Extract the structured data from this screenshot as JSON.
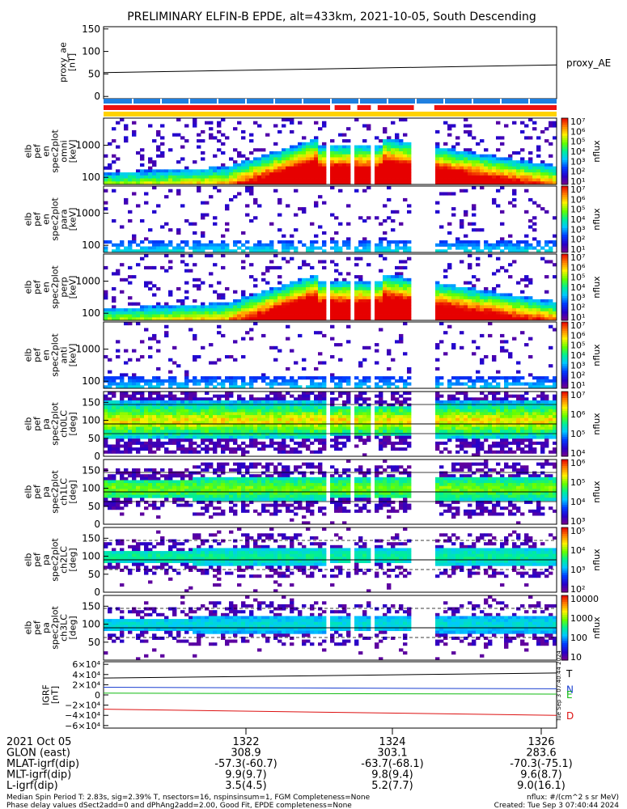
{
  "title": "PRELIMINARY ELFIN-B EPDE, alt=433km, 2021-10-05, South Descending",
  "colors": {
    "ae_line": "#000000",
    "bar_blue": "#1f7fe0",
    "bar_red": "#ee1111",
    "bar_yellow": "#ffd200",
    "grf_T": "#000000",
    "grf_N": "#1a3fd0",
    "grf_E": "#11bb11",
    "grf_D": "#dd1111"
  },
  "chart_data": [
    {
      "type": "line",
      "panel": "proxy_ae",
      "ylabel": "proxy_ae\n[nT]",
      "legend": "proxy_AE",
      "ylim": [
        -5,
        155
      ],
      "yticks": [
        0,
        50,
        100,
        150
      ],
      "x": [
        0,
        1
      ],
      "series": [
        {
          "name": "proxy_AE",
          "values": [
            53,
            70
          ]
        }
      ]
    },
    {
      "type": "heatmap",
      "panel": "spec_en_1",
      "ylabel": "elb\npef\nen\nspec2plot\nomni\n[keV]",
      "yscale": "log",
      "ylim": [
        60,
        7000
      ],
      "yticks": [
        100,
        1000
      ],
      "colorbar": {
        "label": "nflux",
        "ticks": [
          "10⁷",
          "10⁶",
          "10⁵",
          "10⁴",
          "10³",
          "10²",
          "10¹"
        ]
      }
    },
    {
      "type": "heatmap",
      "panel": "spec_en_2",
      "ylabel": "elb\npef\nen\nspec2plot\npara\n[keV]",
      "yscale": "log",
      "ylim": [
        60,
        7000
      ],
      "yticks": [
        100,
        1000
      ],
      "colorbar": {
        "label": "nflux",
        "ticks": [
          "10⁷",
          "10⁶",
          "10⁵",
          "10⁴",
          "10³",
          "10²",
          "10¹"
        ]
      }
    },
    {
      "type": "heatmap",
      "panel": "spec_en_3",
      "ylabel": "elb\npef\nen\nspec2plot\nperp\n[keV]",
      "yscale": "log",
      "ylim": [
        60,
        7000
      ],
      "yticks": [
        100,
        1000
      ],
      "colorbar": {
        "label": "nflux",
        "ticks": [
          "10⁷",
          "10⁶",
          "10⁵",
          "10⁴",
          "10³",
          "10²",
          "10¹"
        ]
      }
    },
    {
      "type": "heatmap",
      "panel": "spec_en_4",
      "ylabel": "elb\npef\nen\nspec2plot\nanti\n[keV]",
      "yscale": "log",
      "ylim": [
        60,
        7000
      ],
      "yticks": [
        100,
        1000
      ],
      "colorbar": {
        "label": "nflux",
        "ticks": [
          "10⁷",
          "10⁶",
          "10⁵",
          "10⁴",
          "10³",
          "10²",
          "10¹"
        ]
      }
    },
    {
      "type": "heatmap",
      "panel": "spec_pa_0",
      "ylabel": "elb\npef\npa\nspec2plot\nch0LC\n[deg]",
      "ylim": [
        0,
        180
      ],
      "yticks": [
        0,
        50,
        100,
        150
      ],
      "colorbar": {
        "label": "nflux",
        "ticks": [
          "10⁷",
          "10⁶",
          "10⁵",
          "10⁴"
        ]
      }
    },
    {
      "type": "heatmap",
      "panel": "spec_pa_1",
      "ylabel": "elb\npef\npa\nspec2plot\nch1LC\n[deg]",
      "ylim": [
        0,
        180
      ],
      "yticks": [
        0,
        50,
        100,
        150
      ],
      "colorbar": {
        "label": "nflux",
        "ticks": [
          "10⁶",
          "10⁵",
          "10⁴",
          "10³"
        ]
      }
    },
    {
      "type": "heatmap",
      "panel": "spec_pa_2",
      "ylabel": "elb\npef\npa\nspec2plot\nch2LC\n[deg]",
      "ylim": [
        0,
        180
      ],
      "yticks": [
        0,
        50,
        100,
        150
      ],
      "colorbar": {
        "label": "nflux",
        "ticks": [
          "10⁵",
          "10⁴",
          "10³",
          "10²"
        ]
      }
    },
    {
      "type": "heatmap",
      "panel": "spec_pa_3",
      "ylabel": "elb\npef\npa\nspec2plot\nch3LC\n[deg]",
      "ylim": [
        0,
        180
      ],
      "yticks": [
        50,
        100,
        150
      ],
      "colorbar": {
        "label": "nflux",
        "ticks": [
          "10000",
          "1000",
          "100",
          "10"
        ]
      }
    },
    {
      "type": "line",
      "panel": "igrf",
      "ylabel": "IGRF\n[nT]",
      "ylim": [
        -65000,
        65000
      ],
      "yticks": [
        "6×10⁴",
        "4×10⁴",
        "2×10⁴",
        "0",
        "−2×10⁴",
        "−4×10⁴",
        "−6×10⁴"
      ],
      "ytick_values": [
        60000,
        40000,
        20000,
        0,
        -20000,
        -40000,
        -60000
      ],
      "x": [
        0,
        1
      ],
      "series": [
        {
          "name": "T",
          "values": [
            33000,
            43000
          ]
        },
        {
          "name": "N",
          "values": [
            15000,
            12000
          ]
        },
        {
          "name": "E",
          "values": [
            3500,
            1500
          ]
        },
        {
          "name": "D",
          "values": [
            -28000,
            -40000
          ]
        }
      ]
    }
  ],
  "side_stamp": "Tue Sep  3 07:40:44 2024",
  "footer": {
    "rows": [
      {
        "label": "2021 Oct 05",
        "values": [
          "1322",
          "1324",
          "1326"
        ]
      },
      {
        "label": "GLON (east)",
        "values": [
          "308.9",
          "303.1",
          "283.6"
        ]
      },
      {
        "label": "MLAT-igrf(dip)",
        "values": [
          "-57.3(-60.7)",
          "-63.7(-68.1)",
          "-70.3(-75.1)"
        ]
      },
      {
        "label": "MLT-igrf(dip)",
        "values": [
          "9.9(9.7)",
          "9.8(9.4)",
          "9.6(8.7)"
        ]
      },
      {
        "label": "L-igrf(dip)",
        "values": [
          "3.5(4.5)",
          "5.2(7.7)",
          "9.0(16.1)"
        ]
      }
    ],
    "note_left_1": "Median Spin Period T: 2.83s, sig=2.39% T, nsectors=16, nspinsinsum=1, FGM Completeness=None",
    "note_left_2": "Phase delay values dSect2add=0 and dPhAng2add=2.00, Good Fit, EPDE completeness=None",
    "note_right_1": "nflux: #/(cm^2 s sr MeV)",
    "note_right_2": "Created: Tue Sep  3 07:40:44 2024"
  }
}
